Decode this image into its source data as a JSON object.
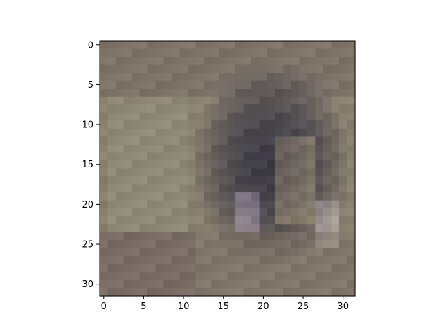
{
  "chart_data": {
    "type": "heatmap",
    "title": "",
    "xlabel": "",
    "ylabel": "",
    "xlim": [
      -0.5,
      31.5
    ],
    "ylim": [
      31.5,
      -0.5
    ],
    "x_ticks": [
      0,
      5,
      10,
      15,
      20,
      25,
      30
    ],
    "y_ticks": [
      0,
      5,
      10,
      15,
      20,
      25,
      30
    ],
    "x_tick_labels": [
      "0",
      "5",
      "10",
      "15",
      "20",
      "25",
      "30"
    ],
    "y_tick_labels": [
      "0",
      "5",
      "10",
      "15",
      "20",
      "25",
      "30"
    ],
    "grid": false,
    "colorbar": false,
    "colors": {
      "background_wall": "#8a8070",
      "dark_object": "#3a3a42",
      "floor": "#7a6e66"
    },
    "image_pixels_note": ""
  }
}
